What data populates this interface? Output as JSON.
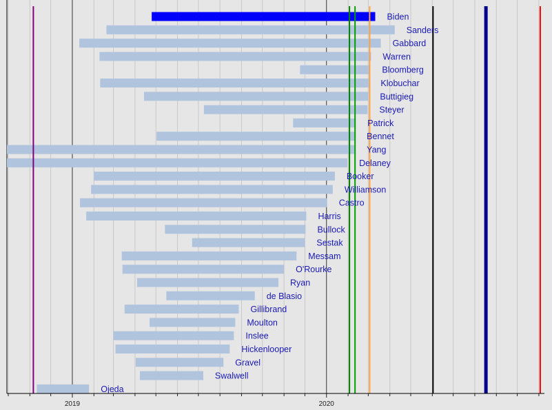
{
  "chart_data": {
    "type": "timeline",
    "xlim": [
      "2018-09-29",
      "2020-11-09"
    ],
    "x_ticks": [
      {
        "date": "2019-01-01",
        "label": "2019"
      },
      {
        "date": "2020-01-01",
        "label": "2020"
      }
    ],
    "grid": "monthly",
    "highlight_color": "#0000ff",
    "bar_color": "#b0c4de",
    "label_color": "#1a1ab4",
    "series": [
      {
        "name": "Biden",
        "start": "2019-04-25",
        "end": "2020-03-11",
        "highlight": true
      },
      {
        "name": "Sanders",
        "start": "2019-02-19",
        "end": "2020-04-08"
      },
      {
        "name": "Gabbard",
        "start": "2019-01-11",
        "end": "2020-03-19"
      },
      {
        "name": "Warren",
        "start": "2019-02-09",
        "end": "2020-03-05"
      },
      {
        "name": "Bloomberg",
        "start": "2019-11-24",
        "end": "2020-03-04"
      },
      {
        "name": "Klobuchar",
        "start": "2019-02-10",
        "end": "2020-03-02"
      },
      {
        "name": "Buttigieg",
        "start": "2019-04-14",
        "end": "2020-03-01"
      },
      {
        "name": "Steyer",
        "start": "2019-07-09",
        "end": "2020-02-29"
      },
      {
        "name": "Patrick",
        "start": "2019-11-14",
        "end": "2020-02-12"
      },
      {
        "name": "Bennet",
        "start": "2019-05-02",
        "end": "2020-02-11"
      },
      {
        "name": "Yang",
        "start": "2017-11-06",
        "end": "2020-02-11"
      },
      {
        "name": "Delaney",
        "start": "2017-07-28",
        "end": "2020-01-31"
      },
      {
        "name": "Booker",
        "start": "2019-02-01",
        "end": "2020-01-13"
      },
      {
        "name": "Williamson",
        "start": "2019-01-28",
        "end": "2020-01-10"
      },
      {
        "name": "Castro",
        "start": "2019-01-12",
        "end": "2020-01-02"
      },
      {
        "name": "Harris",
        "start": "2019-01-21",
        "end": "2019-12-03"
      },
      {
        "name": "Bullock",
        "start": "2019-05-14",
        "end": "2019-12-02"
      },
      {
        "name": "Sestak",
        "start": "2019-06-22",
        "end": "2019-12-01"
      },
      {
        "name": "Messam",
        "start": "2019-03-13",
        "end": "2019-11-19"
      },
      {
        "name": "O'Rourke",
        "start": "2019-03-14",
        "end": "2019-11-01"
      },
      {
        "name": "Ryan",
        "start": "2019-04-04",
        "end": "2019-10-24"
      },
      {
        "name": "de Blasio",
        "start": "2019-05-16",
        "end": "2019-09-20"
      },
      {
        "name": "Gillibrand",
        "start": "2019-03-17",
        "end": "2019-08-28"
      },
      {
        "name": "Moulton",
        "start": "2019-04-22",
        "end": "2019-08-23"
      },
      {
        "name": "Inslee",
        "start": "2019-03-01",
        "end": "2019-08-21"
      },
      {
        "name": "Hickenlooper",
        "start": "2019-03-04",
        "end": "2019-08-15"
      },
      {
        "name": "Gravel",
        "start": "2019-04-02",
        "end": "2019-08-06"
      },
      {
        "name": "Swalwell",
        "start": "2019-04-08",
        "end": "2019-07-08"
      },
      {
        "name": "Ojeda",
        "start": "2018-11-11",
        "end": "2019-01-25"
      }
    ],
    "event_lines": [
      {
        "date": "2018-11-06",
        "color": "#800080"
      },
      {
        "date": "2020-02-03",
        "color": "#008000"
      },
      {
        "date": "2020-02-11",
        "color": "#00a000"
      },
      {
        "date": "2020-03-03",
        "color": "#ffa040"
      },
      {
        "date": "2020-06-02",
        "color": "#000000"
      },
      {
        "date": "2020-08-17",
        "color": "#00008b",
        "thick": true
      },
      {
        "date": "2020-11-03",
        "color": "#ff0000"
      }
    ]
  }
}
